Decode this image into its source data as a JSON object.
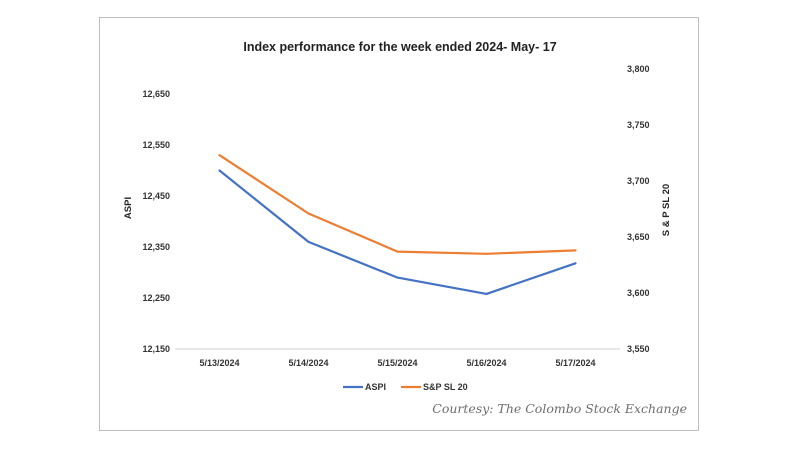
{
  "chart_data": {
    "type": "line",
    "title": "Index performance for the week ended 2024- May- 17",
    "categories": [
      "5/13/2024",
      "5/14/2024",
      "5/15/2024",
      "5/16/2024",
      "5/17/2024"
    ],
    "y_left": {
      "label": "ASPI",
      "range": [
        12150,
        12650
      ],
      "ticks": [
        "12,150",
        "12,250",
        "12,350",
        "12,450",
        "12,550",
        "12,650"
      ]
    },
    "y_right": {
      "label": "S & P SL 20",
      "range": [
        3550,
        3800
      ],
      "ticks": [
        "3,550",
        "3,600",
        "3,650",
        "3,700",
        "3,750",
        "3,800"
      ]
    },
    "series": [
      {
        "name": "ASPI",
        "axis": "left",
        "color": "#4472c4",
        "values": [
          12500,
          12360,
          12290,
          12258,
          12318
        ]
      },
      {
        "name": "S&P SL 20",
        "axis": "right",
        "color": "#ed7d31",
        "values": [
          3723,
          3671,
          3637,
          3635,
          3638
        ]
      }
    ],
    "grid": false,
    "legend_position": "bottom"
  },
  "credit": "Courtesy: The Colombo Stock Exchange"
}
